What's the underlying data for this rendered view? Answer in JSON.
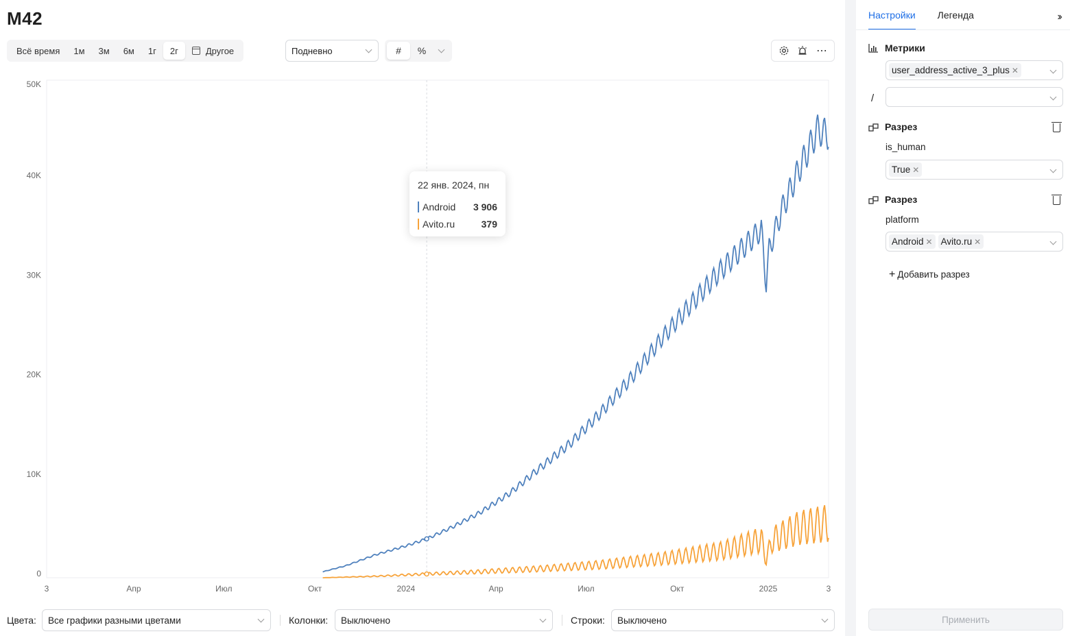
{
  "title": "M42",
  "toolbar": {
    "ranges": [
      "Всё время",
      "1м",
      "3м",
      "6м",
      "1г",
      "2г"
    ],
    "active_range": "2г",
    "custom_label": "Другое",
    "granularity": "Подневно",
    "format_hash": "#",
    "format_percent": "%"
  },
  "tooltip": {
    "date": "22 янв. 2024, пн",
    "rows": [
      {
        "label": "Android",
        "value": "3 906",
        "color": "#4f81bd"
      },
      {
        "label": "Avito.ru",
        "value": "379",
        "color": "#f7a33a"
      }
    ]
  },
  "chart_data": {
    "type": "line",
    "x_ticks": [
      "3",
      "Апр",
      "Июл",
      "Окт",
      "2024",
      "Апр",
      "Июл",
      "Окт",
      "2025",
      "3"
    ],
    "y_ticks": [
      "0",
      "10K",
      "20K",
      "30K",
      "40K",
      "50K"
    ],
    "ylim": [
      0,
      50000
    ],
    "x_start": "2023-01-03",
    "x_end": "2025-01-03",
    "series": [
      {
        "name": "Android",
        "color": "#4f81bd",
        "points": [
          [
            "2023-10-09",
            600
          ],
          [
            "2023-11-01",
            1200
          ],
          [
            "2023-12-01",
            2300
          ],
          [
            "2024-01-01",
            3200
          ],
          [
            "2024-01-22",
            3906
          ],
          [
            "2024-02-15",
            5000
          ],
          [
            "2024-03-15",
            6500
          ],
          [
            "2024-04-15",
            8500
          ],
          [
            "2024-05-15",
            11000
          ],
          [
            "2024-06-15",
            13500
          ],
          [
            "2024-07-15",
            16500
          ],
          [
            "2024-08-15",
            20000
          ],
          [
            "2024-09-15",
            24000
          ],
          [
            "2024-10-15",
            27500
          ],
          [
            "2024-11-15",
            31000
          ],
          [
            "2024-12-15",
            34000
          ],
          [
            "2024-12-25",
            35000
          ],
          [
            "2024-12-30",
            29500
          ],
          [
            "2025-01-02",
            33000
          ],
          [
            "2025-01-15",
            37000
          ],
          [
            "2025-02-01",
            41000
          ],
          [
            "2025-02-20",
            45000
          ],
          [
            "2025-03-03",
            44500
          ]
        ]
      },
      {
        "name": "Avito.ru",
        "color": "#f7a33a",
        "points": [
          [
            "2023-10-09",
            0
          ],
          [
            "2023-12-01",
            150
          ],
          [
            "2024-01-22",
            379
          ],
          [
            "2024-03-15",
            600
          ],
          [
            "2024-05-15",
            900
          ],
          [
            "2024-07-15",
            1300
          ],
          [
            "2024-09-15",
            1900
          ],
          [
            "2024-11-15",
            2700
          ],
          [
            "2024-12-25",
            3800
          ],
          [
            "2024-12-30",
            1800
          ],
          [
            "2025-01-05",
            3800
          ],
          [
            "2025-02-01",
            5000
          ],
          [
            "2025-03-03",
            5500
          ]
        ]
      }
    ]
  },
  "footer": {
    "colors_label": "Цвета:",
    "colors_value": "Все графики разными цветами",
    "columns_label": "Колонки:",
    "columns_value": "Выключено",
    "rows_label": "Строки:",
    "rows_value": "Выключено"
  },
  "side": {
    "tab_settings": "Настройки",
    "tab_legend": "Легенда",
    "metrics_title": "Метрики",
    "metric_value": "user_address_active_3_plus",
    "divide_symbol": "/",
    "slice1_title": "Разрез",
    "slice1_field": "is_human",
    "slice1_values": [
      "True"
    ],
    "slice2_title": "Разрез",
    "slice2_field": "platform",
    "slice2_values": [
      "Android",
      "Avito.ru"
    ],
    "add_slice": "Добавить разрез",
    "apply": "Применить"
  }
}
